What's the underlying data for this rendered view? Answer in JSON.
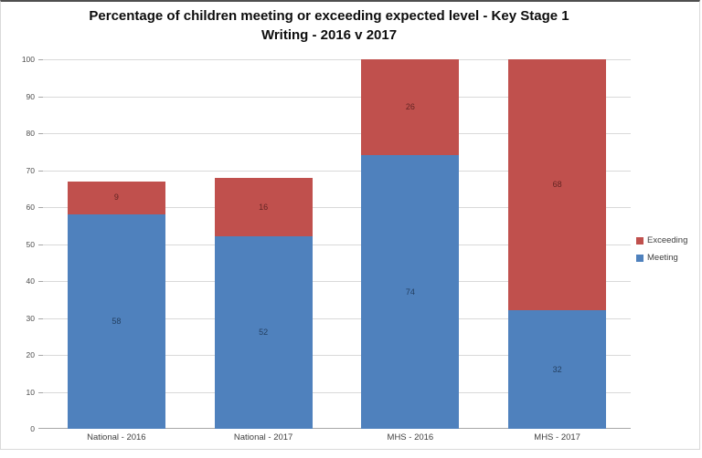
{
  "window": {
    "background": "#ffffff",
    "frame_border_color": "#d9d9d9",
    "frame_top_edge_color": "#4f4f4f"
  },
  "chart_data": {
    "type": "bar",
    "stacked": true,
    "title_line1": "Percentage of children meeting or exceeding expected level - Key Stage 1",
    "title_line2": "Writing - 2016 v 2017",
    "categories": [
      "National - 2016",
      "National - 2017",
      "MHS - 2016",
      "MHS - 2017"
    ],
    "series": [
      {
        "name": "Meeting",
        "color": "#4F81BD",
        "label_color": "#244062",
        "values": [
          58,
          52,
          74,
          32
        ]
      },
      {
        "name": "Exceeding",
        "color": "#C0504D",
        "label_color": "#632523",
        "values": [
          9,
          16,
          26,
          68
        ]
      }
    ],
    "totals": [
      67,
      68,
      100,
      100
    ],
    "ylim": [
      0,
      100
    ],
    "yticks": [
      0,
      10,
      20,
      30,
      40,
      50,
      60,
      70,
      80,
      90,
      100
    ],
    "grid": "horizontal",
    "gridline_color": "#d9d9d9",
    "axis_line_color": "#a6a6a6",
    "legend_position": "right",
    "legend_order": [
      "Exceeding",
      "Meeting"
    ]
  }
}
